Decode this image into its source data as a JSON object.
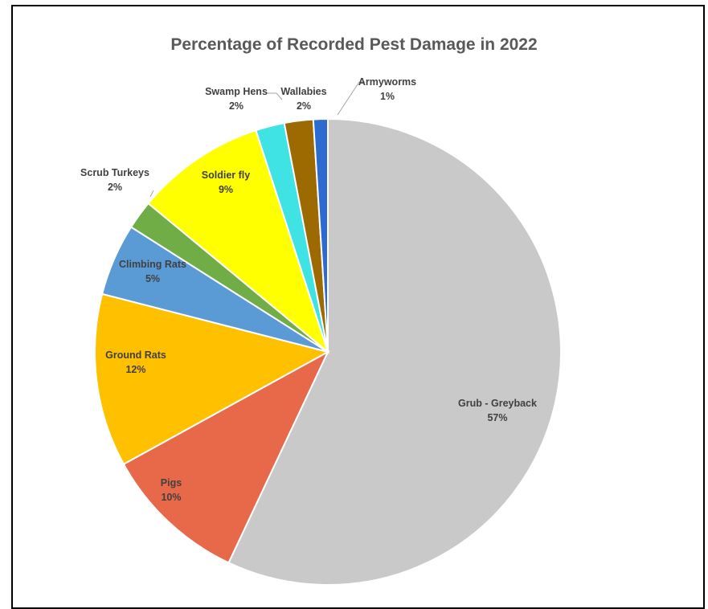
{
  "chart_data": {
    "type": "pie",
    "title": "Percentage of Recorded Pest Damage in 2022",
    "start_angle_deg": 0,
    "direction": "clockwise",
    "slices": [
      {
        "name": "Grub - Greyback",
        "value": 57,
        "label": "57%",
        "color": "#C9C9C9"
      },
      {
        "name": "Pigs",
        "value": 10,
        "label": "10%",
        "color": "#E8694A"
      },
      {
        "name": "Ground Rats",
        "value": 12,
        "label": "12%",
        "color": "#FFC000"
      },
      {
        "name": "Climbing Rats",
        "value": 5,
        "label": "5%",
        "color": "#5B9BD5"
      },
      {
        "name": "Scrub Turkeys",
        "value": 2,
        "label": "2%",
        "color": "#70AD47"
      },
      {
        "name": "Soldier fly",
        "value": 9,
        "label": "9%",
        "color": "#FFFF00"
      },
      {
        "name": "Swamp Hens",
        "value": 2,
        "label": "2%",
        "color": "#3FE3E3"
      },
      {
        "name": "Wallabies",
        "value": 2,
        "label": "2%",
        "color": "#9C6A00"
      },
      {
        "name": "Armyworms",
        "value": 1,
        "label": "1%",
        "color": "#2E6BD1"
      }
    ]
  }
}
